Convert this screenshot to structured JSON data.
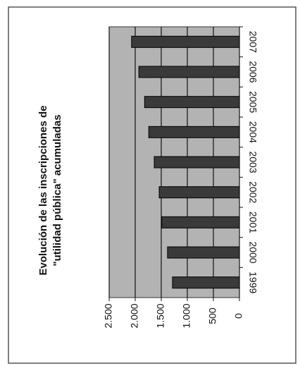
{
  "chart_data": {
    "type": "bar",
    "orientation": "horizontal",
    "title": [
      "Evolución de las inscripciones de",
      "\"utilidad pública\" acumuladas"
    ],
    "categories": [
      "2007",
      "2006",
      "2005",
      "2004",
      "2003",
      "2002",
      "2001",
      "2000",
      "1999"
    ],
    "values": [
      2070,
      1930,
      1820,
      1740,
      1635,
      1540,
      1490,
      1380,
      1285
    ],
    "color": "#3a3a3a",
    "xlim": [
      0,
      2500
    ],
    "xticks": [
      0,
      500,
      {
        "value": 1000,
        "label": "1.000"
      },
      {
        "value": 1500,
        "label": "1.500"
      },
      {
        "value": 2000,
        "label": "2.000"
      },
      {
        "value": 2500,
        "label": "2.500"
      }
    ],
    "grid": true
  }
}
